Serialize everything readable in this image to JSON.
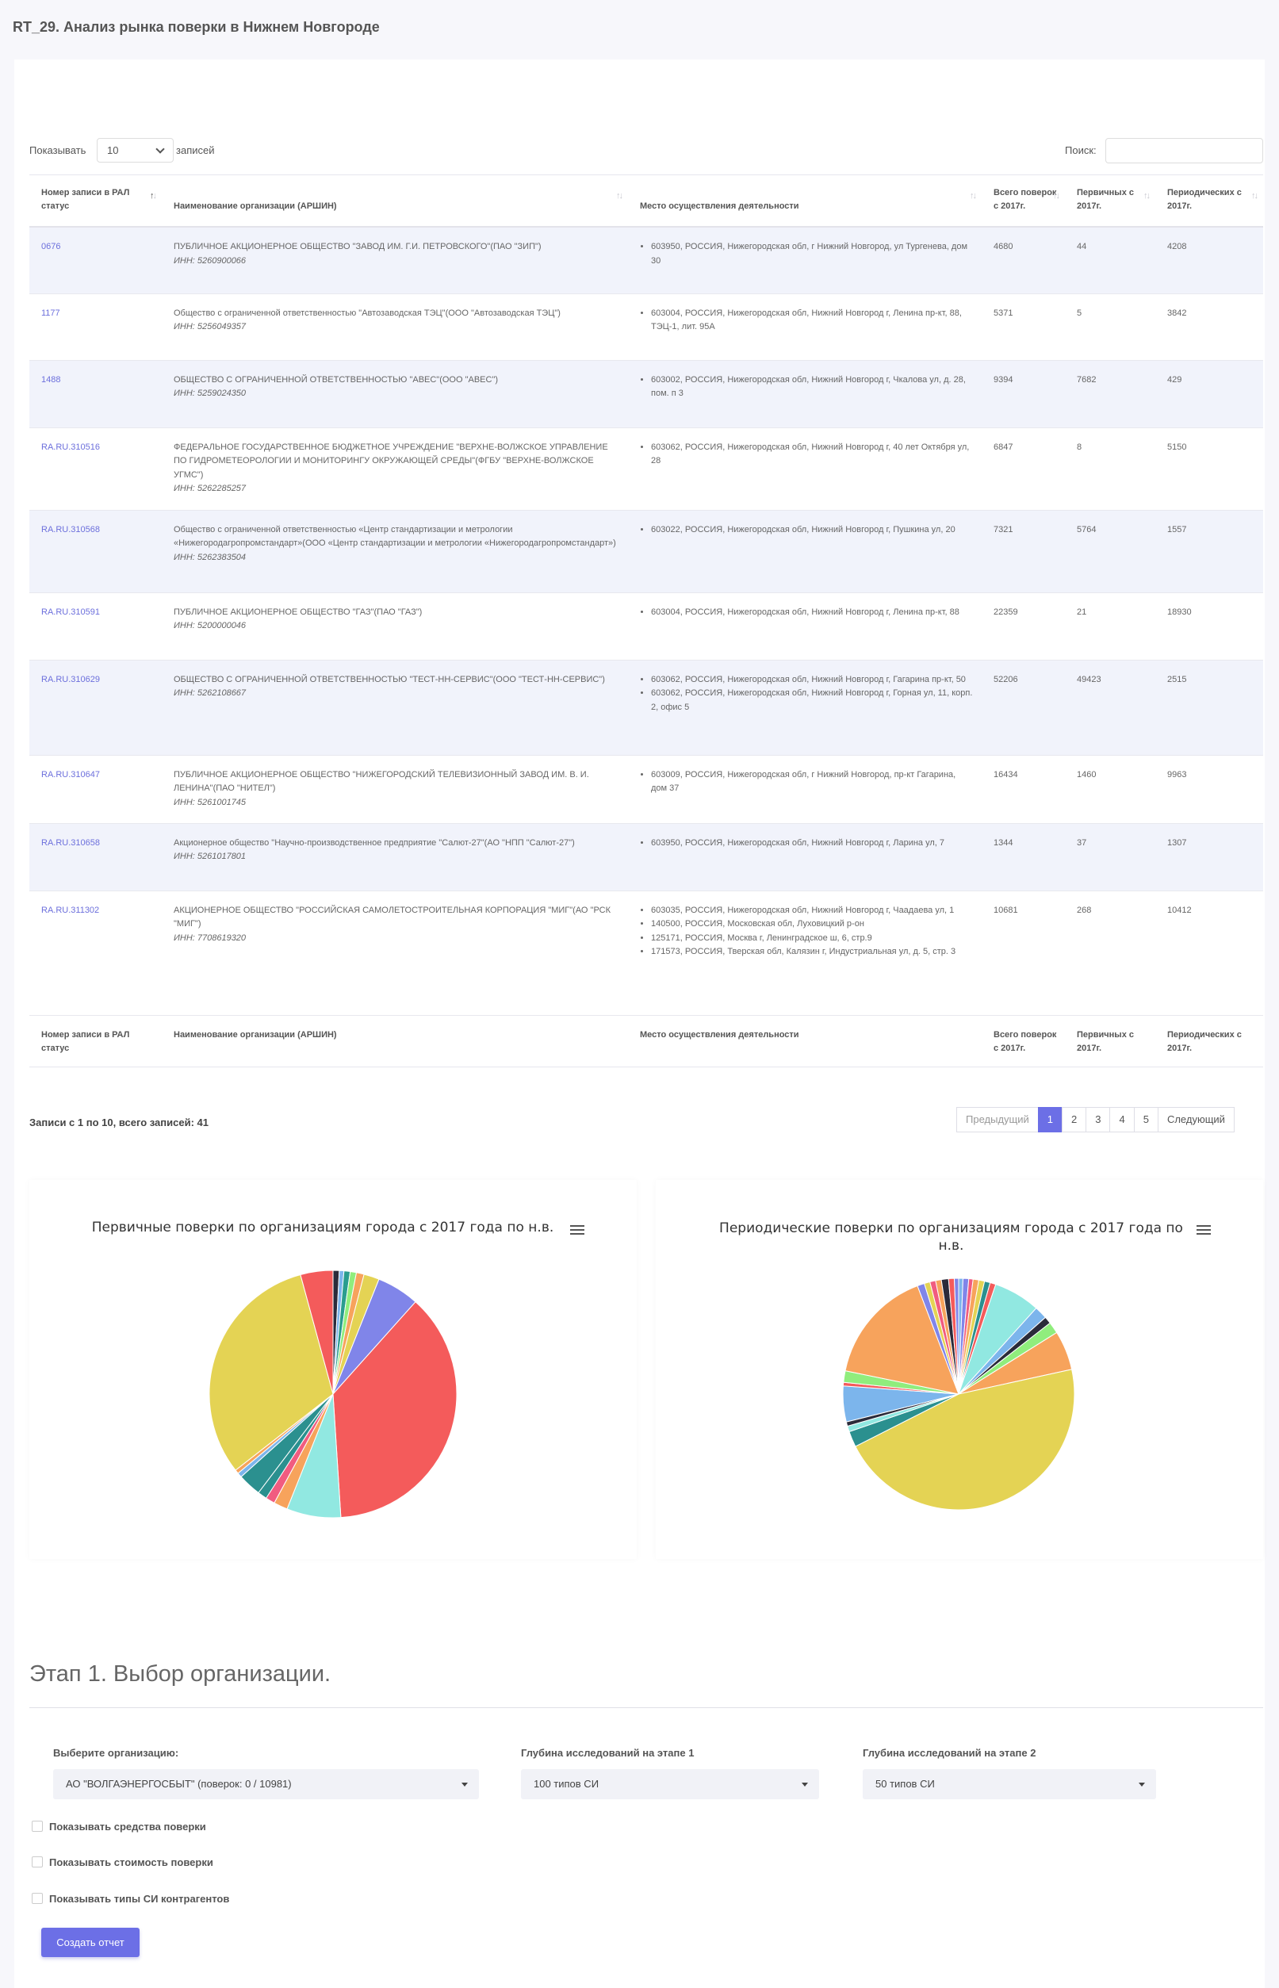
{
  "page": {
    "title": "RT_29. Анализ рынка поверки в Нижнем Новгороде"
  },
  "table_controls": {
    "length_label_before": "Показывать",
    "length_value": "10",
    "length_label_after": "записей",
    "search_label": "Поиск:",
    "search_value": ""
  },
  "table": {
    "columns": [
      "Номер записи в РАЛ статус",
      "Наименование организации (АРШИН)",
      "Место осуществления деятельности",
      "Всего поверок с 2017г.",
      "Первичных с 2017г.",
      "Периодических с 2017г."
    ],
    "rows": [
      {
        "id": "0676",
        "name": "ПУБЛИЧНОЕ АКЦИОНЕРНОЕ ОБЩЕСТВО \"ЗАВОД ИМ. Г.И. ПЕТРОВСКОГО\"(ПАО \"ЗИП\")",
        "inn": "ИНН: 5260900066",
        "places": [
          "603950, РОССИЯ, Нижегородская обл, г Нижний Новгород, ул Тургенева, дом 30"
        ],
        "total": "4680",
        "primary": "44",
        "periodic": "4208"
      },
      {
        "id": "1177",
        "name": "Общество с ограниченной ответственностью \"Автозаводская ТЭЦ\"(ООО \"Автозаводская ТЭЦ\")",
        "inn": "ИНН: 5256049357",
        "places": [
          "603004, РОССИЯ, Нижегородская обл, Нижний Новгород г, Ленина пр-кт, 88, ТЭЦ-1, лит. 95А"
        ],
        "total": "5371",
        "primary": "5",
        "periodic": "3842"
      },
      {
        "id": "1488",
        "name": "ОБЩЕСТВО С ОГРАНИЧЕННОЙ ОТВЕТСТВЕННОСТЬЮ \"АВЕС\"(ООО \"АВЕС\")",
        "inn": "ИНН: 5259024350",
        "places": [
          "603002, РОССИЯ, Нижегородская обл, Нижний Новгород г, Чкалова ул, д. 28, пом. п 3"
        ],
        "total": "9394",
        "primary": "7682",
        "periodic": "429"
      },
      {
        "id": "RA.RU.310516",
        "name": "ФЕДЕРАЛЬНОЕ ГОСУДАРСТВЕННОЕ БЮДЖЕТНОЕ УЧРЕЖДЕНИЕ \"ВЕРХНЕ-ВОЛЖСКОЕ УПРАВЛЕНИЕ ПО ГИДРОМЕТЕОРОЛОГИИ И МОНИТОРИНГУ ОКРУЖАЮЩЕЙ СРЕДЫ\"(ФГБУ \"ВЕРХНЕ-ВОЛЖСКОЕ УГМС\")",
        "inn": "ИНН: 5262285257",
        "places": [
          "603062, РОССИЯ, Нижегородская обл, Нижний Новгород г, 40 лет Октября ул, 28"
        ],
        "total": "6847",
        "primary": "8",
        "periodic": "5150"
      },
      {
        "id": "RA.RU.310568",
        "name": "Общество с ограниченной ответственностью «Центр стандартизации и метрологии «Нижегородагропромстандарт»(ООО «Центр стандартизации и метрологии «Нижегородагропромстандарт»)",
        "inn": "ИНН: 5262383504",
        "places": [
          "603022, РОССИЯ, Нижегородская обл, Нижний Новгород г, Пушкина ул, 20"
        ],
        "total": "7321",
        "primary": "5764",
        "periodic": "1557"
      },
      {
        "id": "RA.RU.310591",
        "name": "ПУБЛИЧНОЕ АКЦИОНЕРНОЕ ОБЩЕСТВО \"ГАЗ\"(ПАО \"ГАЗ\")",
        "inn": "ИНН: 5200000046",
        "places": [
          "603004, РОССИЯ, Нижегородская обл, Нижний Новгород г, Ленина пр-кт, 88"
        ],
        "total": "22359",
        "primary": "21",
        "periodic": "18930"
      },
      {
        "id": "RA.RU.310629",
        "name": "ОБЩЕСТВО С ОГРАНИЧЕННОЙ ОТВЕТСТВЕННОСТЬЮ \"ТЕСТ-НН-СЕРВИС\"(ООО \"ТЕСТ-НН-СЕРВИС\")",
        "inn": "ИНН: 5262108667",
        "places": [
          "603062, РОССИЯ, Нижегородская обл, Нижний Новгород г, Гагарина пр-кт, 50",
          "603062, РОССИЯ, Нижегородская обл, Нижний Новгород г, Горная ул, 11, корп. 2, офис 5"
        ],
        "total": "52206",
        "primary": "49423",
        "periodic": "2515"
      },
      {
        "id": "RA.RU.310647",
        "name": "ПУБЛИЧНОЕ АКЦИОНЕРНОЕ ОБЩЕСТВО \"НИЖЕГОРОДСКИЙ ТЕЛЕВИЗИОННЫЙ ЗАВОД ИМ. В. И. ЛЕНИНА\"(ПАО \"НИТЕЛ\")",
        "inn": "ИНН: 5261001745",
        "places": [
          "603009, РОССИЯ, Нижегородская обл, г Нижний Новгород, пр-кт Гагарина, дом 37"
        ],
        "total": "16434",
        "primary": "1460",
        "periodic": "9963"
      },
      {
        "id": "RA.RU.310658",
        "name": "Акционерное общество \"Научно-производственное предприятие \"Салют-27\"(АО \"НПП \"Салют-27\")",
        "inn": "ИНН: 5261017801",
        "places": [
          "603950, РОССИЯ, Нижегородская обл, Нижний Новгород г, Ларина ул, 7"
        ],
        "total": "1344",
        "primary": "37",
        "periodic": "1307"
      },
      {
        "id": "RA.RU.311302",
        "name": "АКЦИОНЕРНОЕ ОБЩЕСТВО \"РОССИЙСКАЯ САМОЛЕТОСТРОИТЕЛЬНАЯ КОРПОРАЦИЯ \"МИГ\"(АО \"РСК \"МИГ\")",
        "inn": "ИНН: 7708619320",
        "places": [
          "603035, РОССИЯ, Нижегородская обл, Нижний Новгород г, Чаадаева ул, 1",
          "140500, РОССИЯ, Московская обл, Луховицкий р-он",
          "125171, РОССИЯ, Москва г, Ленинградское ш, 6, стр.9",
          "171573, РОССИЯ, Тверская обл, Калязин г, Индустриальная ул, д. 5, стр. 3"
        ],
        "total": "10681",
        "primary": "268",
        "periodic": "10412"
      }
    ],
    "info": "Записи с 1 по 10, всего записей: 41",
    "pager": {
      "prev": "Предыдущий",
      "pages": [
        "1",
        "2",
        "3",
        "4",
        "5"
      ],
      "current": "1",
      "next": "Следующий"
    }
  },
  "chart_data": [
    {
      "type": "pie",
      "title": "Первичные поверки по организациям города с 2017 года по н.в.",
      "values": [
        0.8,
        0.6,
        0.8,
        0.8,
        1.0,
        2.0,
        5.5,
        37.0,
        7.0,
        1.8,
        1.2,
        1.2,
        3.0,
        0.6,
        0.5,
        31.0,
        4.2
      ],
      "colors": [
        "#2b2b3a",
        "#7cb5ec",
        "#2a9d8f",
        "#90ed7d",
        "#f7a35c",
        "#e4d354",
        "#8085e9",
        "#f45b5b",
        "#91e8e1",
        "#f7a35c",
        "#f15c80",
        "#2b908f",
        "#2b908f",
        "#7cb5ec",
        "#f7a35c",
        "#e4d354",
        "#f45b5b"
      ]
    },
    {
      "type": "pie",
      "title": "Периодические поверки по организациям города с 2017 года по н.в.",
      "values": [
        0.6,
        0.8,
        0.6,
        0.8,
        0.8,
        0.8,
        0.8,
        6.5,
        1.8,
        1.0,
        1.6,
        5.5,
        46.0,
        2.2,
        0.8,
        0.6,
        5.0,
        0.5,
        1.6,
        16.0,
        1.0,
        0.8,
        0.8,
        0.8,
        1.0,
        0.8,
        0.6
      ],
      "colors": [
        "#7cb5ec",
        "#8085e9",
        "#f15c80",
        "#f7a35c",
        "#e4d354",
        "#2b908f",
        "#f45b5b",
        "#91e8e1",
        "#7cb5ec",
        "#2b2b3a",
        "#90ed7d",
        "#f7a35c",
        "#e4d354",
        "#2b908f",
        "#91e8e1",
        "#2b2b3a",
        "#7cb5ec",
        "#f45b5b",
        "#90ed7d",
        "#f7a35c",
        "#8085e9",
        "#e4d354",
        "#f15c80",
        "#f7a35c",
        "#2b2b3a",
        "#f45b5b",
        "#8085e9"
      ]
    }
  ],
  "stage": {
    "title": "Этап 1. Выбор организации.",
    "org_label": "Выберите организацию:",
    "org_value": "АО \"ВОЛГАЭНЕРГОСБЫТ\" (поверок: 0 / 10981)",
    "depth1_label": "Глубина исследований на этапе 1",
    "depth1_value": "100 типов СИ",
    "depth2_label": "Глубина исследований на этапе 2",
    "depth2_value": "50 типов СИ",
    "chk1": "Показывать средства поверки",
    "chk2": "Показывать стоимость поверки",
    "chk3": "Показывать типы СИ контрагентов",
    "create_button": "Создать отчет"
  }
}
